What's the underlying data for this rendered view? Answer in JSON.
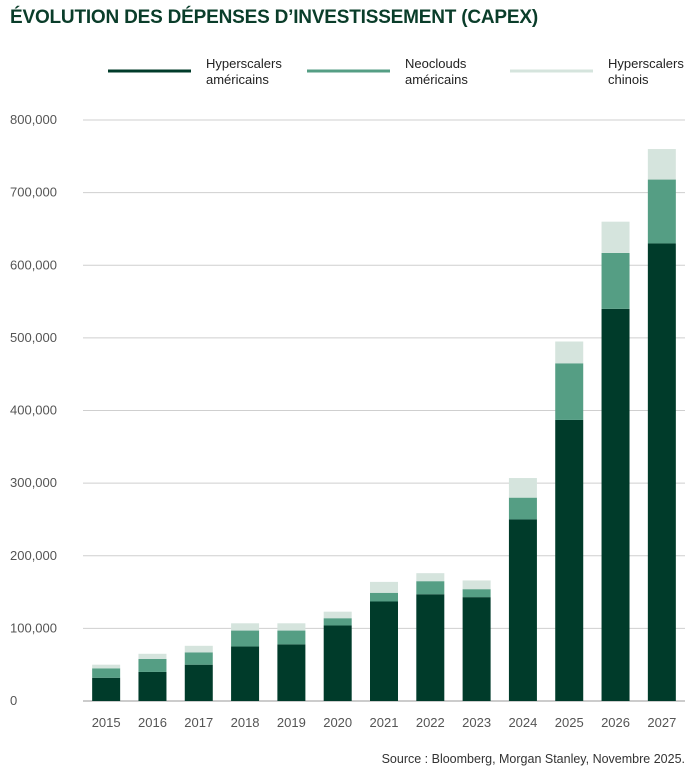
{
  "chart_data": {
    "type": "bar",
    "stacked": true,
    "title": "ÉVOLUTION DES DÉPENSES D’INVESTISSEMENT (CAPEX)",
    "source": "Source : Bloomberg, Morgan Stanley, Novembre 2025.",
    "categories": [
      "2015",
      "2016",
      "2017",
      "2018",
      "2019",
      "2020",
      "2021",
      "2022",
      "2023",
      "2024",
      "2025",
      "2026",
      "2027"
    ],
    "series": [
      {
        "name_lines": [
          "Hyperscalers",
          "américains"
        ],
        "color": "#003b2a",
        "values": [
          32000,
          40000,
          50000,
          75000,
          78000,
          104000,
          137000,
          147000,
          143000,
          250000,
          387000,
          540000,
          630000
        ]
      },
      {
        "name_lines": [
          "Neoclouds",
          "américains"
        ],
        "color": "#559e84",
        "values": [
          13000,
          18000,
          17000,
          22000,
          19000,
          10000,
          12000,
          18000,
          11000,
          30000,
          78000,
          77000,
          88000
        ]
      },
      {
        "name_lines": [
          "Hyperscalers",
          "chinois"
        ],
        "color": "#d5e4dd",
        "values": [
          5000,
          7000,
          9000,
          10000,
          10000,
          9000,
          15000,
          11000,
          12000,
          27000,
          30000,
          43000,
          42000
        ]
      }
    ],
    "y_ticks": [
      "0",
      "100,000",
      "200,000",
      "300,000",
      "400,000",
      "500,000",
      "600,000",
      "700,000",
      "800,000"
    ],
    "ylim": [
      0,
      800000
    ],
    "grid": true,
    "legend_position": "top"
  }
}
